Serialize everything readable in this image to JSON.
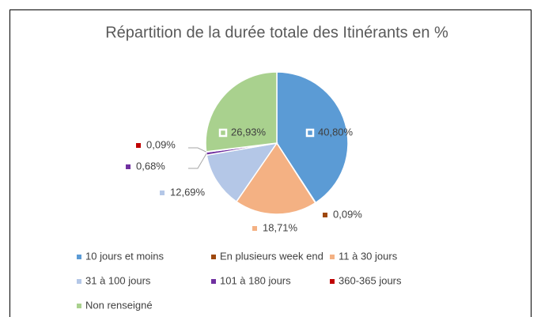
{
  "chart_data": {
    "type": "pie",
    "title": "Répartition de la durée totale des Itinérants en %",
    "categories": [
      "10 jours et moins",
      "En plusieurs week end",
      "11 à 30 jours",
      "31 à 100 jours",
      "101 à 180  jours",
      "360-365 jours",
      "Non renseigné"
    ],
    "values": [
      40.8,
      0.09,
      18.71,
      12.69,
      0.68,
      0.09,
      26.93
    ],
    "value_labels": [
      "40,80%",
      "0,09%",
      "18,71%",
      "12,69%",
      "0,68%",
      "0,09%",
      "26,93%"
    ],
    "colors": [
      "#5b9bd5",
      "#9e480e",
      "#f4b183",
      "#b4c7e7",
      "#7030a0",
      "#c00000",
      "#a9d18e"
    ],
    "legend": "bottom"
  }
}
